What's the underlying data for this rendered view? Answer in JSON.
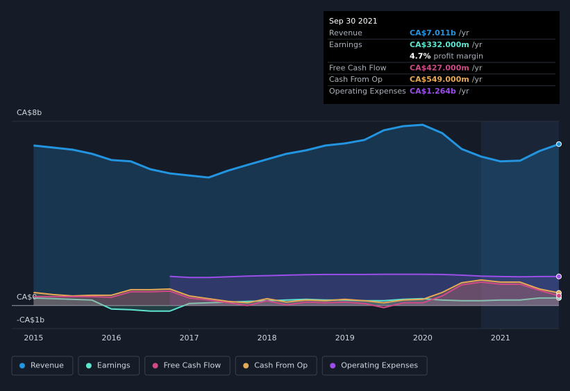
{
  "chart_data": {
    "type": "area",
    "x": [
      2015,
      2015.25,
      2015.5,
      2015.75,
      2016,
      2016.25,
      2016.5,
      2016.75,
      2017,
      2017.25,
      2017.5,
      2017.75,
      2018,
      2018.25,
      2018.5,
      2018.75,
      2019,
      2019.25,
      2019.5,
      2019.75,
      2020,
      2020.25,
      2020.5,
      2020.75,
      2021,
      2021.25,
      2021.5,
      2021.75
    ],
    "xlim": [
      2014.72,
      2021.75
    ],
    "xticks": [
      2015,
      2016,
      2017,
      2018,
      2019,
      2020,
      2021
    ],
    "ylim": [
      -1,
      8
    ],
    "yticks": [
      {
        "value": -1,
        "label": "-CA$1b"
      },
      {
        "value": 0,
        "label": "CA$0"
      },
      {
        "value": 8,
        "label": "CA$8b"
      }
    ],
    "grid": true,
    "series": [
      {
        "name": "Revenue",
        "color": "#2394df",
        "values": [
          6.95,
          6.86,
          6.77,
          6.59,
          6.32,
          6.26,
          5.92,
          5.74,
          5.65,
          5.56,
          5.86,
          6.11,
          6.35,
          6.59,
          6.74,
          6.95,
          7.04,
          7.19,
          7.61,
          7.79,
          7.85,
          7.49,
          6.8,
          6.47,
          6.26,
          6.29,
          6.71,
          7.011
        ]
      },
      {
        "name": "Earnings",
        "color": "#5ee5cf",
        "values": [
          0.33,
          0.3,
          0.27,
          0.24,
          -0.15,
          -0.18,
          -0.24,
          -0.24,
          0.09,
          0.12,
          0.15,
          0.18,
          0.21,
          0.24,
          0.27,
          0.24,
          0.24,
          0.21,
          0.21,
          0.27,
          0.3,
          0.24,
          0.21,
          0.21,
          0.24,
          0.24,
          0.33,
          0.332
        ]
      },
      {
        "name": "Free Cash Flow",
        "color": "#d04b86",
        "values": [
          0.39,
          0.39,
          0.39,
          0.39,
          0.36,
          0.6,
          0.6,
          0.63,
          0.33,
          0.24,
          0.12,
          0.0,
          0.21,
          0.03,
          0.15,
          0.12,
          0.15,
          0.09,
          -0.09,
          0.12,
          0.12,
          0.42,
          0.9,
          1.02,
          0.93,
          0.93,
          0.66,
          0.427
        ]
      },
      {
        "name": "Cash From Op",
        "color": "#e7a955",
        "values": [
          0.57,
          0.48,
          0.42,
          0.45,
          0.45,
          0.69,
          0.69,
          0.72,
          0.42,
          0.3,
          0.18,
          0.12,
          0.3,
          0.15,
          0.24,
          0.21,
          0.27,
          0.21,
          0.12,
          0.24,
          0.27,
          0.57,
          0.99,
          1.11,
          1.02,
          1.02,
          0.72,
          0.549
        ]
      },
      {
        "name": "Operating Expenses",
        "color": "#9b4ee8",
        "values": [
          null,
          null,
          null,
          null,
          null,
          null,
          null,
          1.27,
          1.22,
          1.22,
          1.25,
          1.28,
          1.3,
          1.32,
          1.34,
          1.35,
          1.35,
          1.35,
          1.36,
          1.36,
          1.36,
          1.35,
          1.32,
          1.28,
          1.26,
          1.25,
          1.26,
          1.264
        ]
      }
    ],
    "tooltip": {
      "date": "Sep 30 2021",
      "rows": [
        {
          "label": "Revenue",
          "value": "CA$7.011b",
          "unit": "/yr",
          "color": "#2394df"
        },
        {
          "label": "Earnings",
          "value": "CA$332.000m",
          "unit": "/yr",
          "color": "#5ee5cf"
        },
        {
          "value": "4.7%",
          "unit": "profit margin",
          "color": "#ffffff"
        },
        {
          "label": "Free Cash Flow",
          "value": "CA$427.000m",
          "unit": "/yr",
          "color": "#d04b86"
        },
        {
          "label": "Cash From Op",
          "value": "CA$549.000m",
          "unit": "/yr",
          "color": "#e7a955"
        },
        {
          "label": "Operating Expenses",
          "value": "CA$1.264b",
          "unit": "/yr",
          "color": "#9b4ee8"
        }
      ]
    }
  }
}
